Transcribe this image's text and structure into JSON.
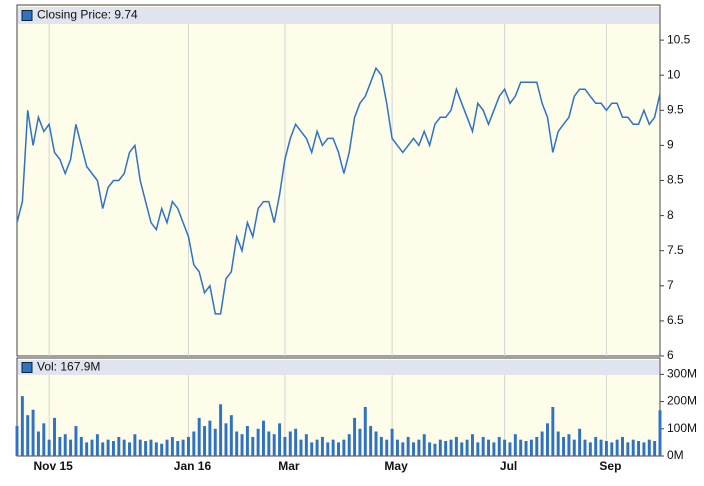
{
  "chart_data": [
    {
      "type": "line",
      "series": [
        {
          "name": "Closing Price: 9.74",
          "color": "#2f72c4",
          "values": [
            7.9,
            8.2,
            9.5,
            9.0,
            9.4,
            9.2,
            9.3,
            8.9,
            8.8,
            8.6,
            8.8,
            9.3,
            9.0,
            8.7,
            8.6,
            8.5,
            8.1,
            8.4,
            8.5,
            8.5,
            8.6,
            8.9,
            9.0,
            8.5,
            8.2,
            7.9,
            7.8,
            8.1,
            7.9,
            8.2,
            8.1,
            7.9,
            7.7,
            7.3,
            7.2,
            6.9,
            7.0,
            6.6,
            6.6,
            7.1,
            7.2,
            7.7,
            7.5,
            7.9,
            7.7,
            8.1,
            8.2,
            8.2,
            7.9,
            8.3,
            8.8,
            9.1,
            9.3,
            9.2,
            9.1,
            8.9,
            9.2,
            9.0,
            9.1,
            9.1,
            8.9,
            8.6,
            8.9,
            9.4,
            9.6,
            9.7,
            9.9,
            10.1,
            10.0,
            9.6,
            9.1,
            9.0,
            8.9,
            9.0,
            9.1,
            9.0,
            9.2,
            9.0,
            9.3,
            9.4,
            9.4,
            9.5,
            9.8,
            9.6,
            9.4,
            9.2,
            9.6,
            9.5,
            9.3,
            9.5,
            9.7,
            9.8,
            9.6,
            9.7,
            9.9,
            9.9,
            9.9,
            9.9,
            9.6,
            9.4,
            8.9,
            9.2,
            9.3,
            9.4,
            9.7,
            9.8,
            9.8,
            9.7,
            9.6,
            9.6,
            9.5,
            9.6,
            9.6,
            9.4,
            9.4,
            9.3,
            9.3,
            9.5,
            9.3,
            9.4,
            9.74
          ]
        }
      ],
      "x": [
        0,
        1,
        2,
        3,
        4,
        5,
        6,
        7,
        8,
        9,
        10,
        11,
        12,
        13,
        14,
        15,
        16,
        17,
        18,
        19,
        20,
        21,
        22,
        23,
        24,
        25,
        26,
        27,
        28,
        29,
        30,
        31,
        32,
        33,
        34,
        35,
        36,
        37,
        38,
        39,
        40,
        41,
        42,
        43,
        44,
        45,
        46,
        47,
        48,
        49,
        50,
        51,
        52,
        53,
        54,
        55,
        56,
        57,
        58,
        59,
        60,
        61,
        62,
        63,
        64,
        65,
        66,
        67,
        68,
        69,
        70,
        71,
        72,
        73,
        74,
        75,
        76,
        77,
        78,
        79,
        80,
        81,
        82,
        83,
        84,
        85,
        86,
        87,
        88,
        89,
        90,
        91,
        92,
        93,
        94,
        95,
        96,
        97,
        98,
        99,
        100,
        101,
        102,
        103,
        104,
        105,
        106,
        107,
        108,
        109,
        110,
        111,
        112,
        113,
        114,
        115,
        116,
        117,
        118,
        119,
        120
      ],
      "xlim": [
        0,
        120
      ],
      "ylim": [
        6,
        11
      ],
      "yticks": [
        6,
        6.5,
        7,
        7.5,
        8,
        8.5,
        9,
        9.5,
        10,
        10.5
      ],
      "grid": true
    },
    {
      "type": "bar",
      "series": [
        {
          "name": "Vol: 167.9M",
          "color": "#2f72c4",
          "values": [
            110,
            220,
            150,
            170,
            90,
            120,
            60,
            140,
            70,
            80,
            60,
            110,
            70,
            50,
            60,
            80,
            50,
            60,
            55,
            70,
            60,
            50,
            80,
            60,
            55,
            60,
            50,
            45,
            60,
            70,
            55,
            60,
            70,
            90,
            140,
            110,
            130,
            100,
            190,
            120,
            150,
            90,
            80,
            110,
            70,
            100,
            130,
            90,
            80,
            120,
            70,
            90,
            100,
            60,
            80,
            50,
            60,
            70,
            50,
            60,
            50,
            60,
            80,
            140,
            100,
            180,
            110,
            90,
            70,
            60,
            100,
            60,
            50,
            70,
            50,
            60,
            80,
            50,
            45,
            60,
            55,
            60,
            70,
            50,
            60,
            80,
            50,
            70,
            60,
            50,
            70,
            60,
            50,
            80,
            60,
            55,
            60,
            70,
            90,
            120,
            180,
            90,
            70,
            80,
            60,
            100,
            60,
            50,
            70,
            60,
            55,
            50,
            60,
            70,
            50,
            60,
            55,
            50,
            60,
            55,
            168
          ]
        }
      ],
      "x": [
        0,
        1,
        2,
        3,
        4,
        5,
        6,
        7,
        8,
        9,
        10,
        11,
        12,
        13,
        14,
        15,
        16,
        17,
        18,
        19,
        20,
        21,
        22,
        23,
        24,
        25,
        26,
        27,
        28,
        29,
        30,
        31,
        32,
        33,
        34,
        35,
        36,
        37,
        38,
        39,
        40,
        41,
        42,
        43,
        44,
        45,
        46,
        47,
        48,
        49,
        50,
        51,
        52,
        53,
        54,
        55,
        56,
        57,
        58,
        59,
        60,
        61,
        62,
        63,
        64,
        65,
        66,
        67,
        68,
        69,
        70,
        71,
        72,
        73,
        74,
        75,
        76,
        77,
        78,
        79,
        80,
        81,
        82,
        83,
        84,
        85,
        86,
        87,
        88,
        89,
        90,
        91,
        92,
        93,
        94,
        95,
        96,
        97,
        98,
        99,
        100,
        101,
        102,
        103,
        104,
        105,
        106,
        107,
        108,
        109,
        110,
        111,
        112,
        113,
        114,
        115,
        116,
        117,
        118,
        119,
        120
      ],
      "xlim": [
        0,
        120
      ],
      "xticks": [
        {
          "value": 6,
          "label": "Nov 15"
        },
        {
          "value": 32,
          "label": "Jan 16"
        },
        {
          "value": 50,
          "label": "Mar"
        },
        {
          "value": 70,
          "label": "May"
        },
        {
          "value": 91,
          "label": "Jul"
        },
        {
          "value": 110,
          "label": "Sep"
        }
      ],
      "ylim": [
        0,
        360
      ],
      "yticks": [
        {
          "value": 0,
          "label": "0M"
        },
        {
          "value": 100,
          "label": "100M"
        },
        {
          "value": 200,
          "label": "200M"
        },
        {
          "value": 300,
          "label": "300M"
        }
      ],
      "grid": true
    }
  ]
}
